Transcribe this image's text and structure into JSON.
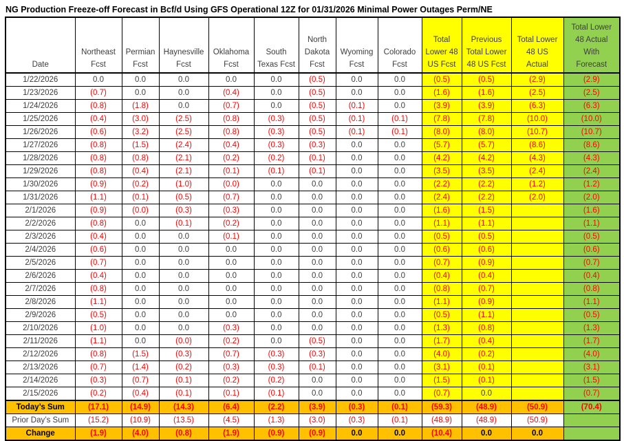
{
  "title": "NG Production Freeze-off Forecast in Bcf/d Using GFS Operational 12Z for 01/31/2026 Minimal Power Outages Perm/NE",
  "colors": {
    "yellow": "#FFFF00",
    "green": "#92D050",
    "orange": "#FFC000",
    "red": "#FF0000"
  },
  "table": {
    "date_header": "Date",
    "columns": [
      {
        "label": "Northeast\nFcst",
        "bg": "white"
      },
      {
        "label": "Permian\nFcst",
        "bg": "white"
      },
      {
        "label": "Haynesville\nFcst",
        "bg": "white"
      },
      {
        "label": "Oklahoma\nFcst",
        "bg": "white"
      },
      {
        "label": "South\nTexas Fcst",
        "bg": "white"
      },
      {
        "label": "North\nDakota\nFcst",
        "bg": "white"
      },
      {
        "label": "Wyoming\nFcst",
        "bg": "white"
      },
      {
        "label": "Colorado\nFcst",
        "bg": "white"
      },
      {
        "label": "Total\nLower 48\nUS Fcst",
        "bg": "yellow"
      },
      {
        "label": "Previous\nTotal Lower\n48 US Fcst",
        "bg": "yellow"
      },
      {
        "label": "Total Lower\n48 US\nActual",
        "bg": "yellow"
      },
      {
        "label": "Total Lower\n48 Actual\nWith\nForecast",
        "bg": "green"
      }
    ],
    "rows": [
      {
        "date": "1/22/2026",
        "values": [
          "0.0",
          "0.0",
          "0.0",
          "0.0",
          "0.0",
          "(0.5)",
          "0.0",
          "0.0",
          "(0.5)",
          "(0.5)",
          "(2.9)",
          "(2.9)"
        ]
      },
      {
        "date": "1/23/2026",
        "values": [
          "(0.7)",
          "0.0",
          "0.0",
          "(0.4)",
          "0.0",
          "(0.5)",
          "0.0",
          "0.0",
          "(1.6)",
          "(1.6)",
          "(2.5)",
          "(2.5)"
        ]
      },
      {
        "date": "1/24/2026",
        "values": [
          "(0.8)",
          "(1.8)",
          "0.0",
          "(0.7)",
          "0.0",
          "(0.5)",
          "(0.1)",
          "0.0",
          "(3.9)",
          "(3.9)",
          "(6.3)",
          "(6.3)"
        ]
      },
      {
        "date": "1/25/2026",
        "values": [
          "(0.4)",
          "(3.0)",
          "(2.5)",
          "(0.8)",
          "(0.3)",
          "(0.5)",
          "(0.1)",
          "(0.1)",
          "(7.8)",
          "(7.8)",
          "(10.0)",
          "(10.0)"
        ]
      },
      {
        "date": "1/26/2026",
        "values": [
          "(0.6)",
          "(3.2)",
          "(2.5)",
          "(0.8)",
          "(0.3)",
          "(0.5)",
          "(0.1)",
          "(0.1)",
          "(8.0)",
          "(8.0)",
          "(10.7)",
          "(10.7)"
        ]
      },
      {
        "date": "1/27/2026",
        "values": [
          "(0.8)",
          "(1.5)",
          "(2.4)",
          "(0.4)",
          "(0.3)",
          "(0.3)",
          "0.0",
          "0.0",
          "(5.7)",
          "(5.7)",
          "(8.6)",
          "(8.6)"
        ]
      },
      {
        "date": "1/28/2026",
        "values": [
          "(0.8)",
          "(0.8)",
          "(2.1)",
          "(0.2)",
          "(0.2)",
          "(0.1)",
          "0.0",
          "0.0",
          "(4.2)",
          "(4.2)",
          "(4.3)",
          "(4.3)"
        ]
      },
      {
        "date": "1/29/2026",
        "values": [
          "(0.8)",
          "(0.4)",
          "(2.1)",
          "(0.1)",
          "(0.1)",
          "(0.1)",
          "0.0",
          "0.0",
          "(3.5)",
          "(3.5)",
          "(2.4)",
          "(2.4)"
        ]
      },
      {
        "date": "1/30/2026",
        "values": [
          "(0.9)",
          "(0.2)",
          "(1.0)",
          "(0.0)",
          "0.0",
          "0.0",
          "0.0",
          "0.0",
          "(2.2)",
          "(2.2)",
          "(1.2)",
          "(1.2)"
        ]
      },
      {
        "date": "1/31/2026",
        "values": [
          "(1.1)",
          "(0.1)",
          "(0.5)",
          "(0.7)",
          "0.0",
          "0.0",
          "0.0",
          "0.0",
          "(2.4)",
          "(2.2)",
          "(2.0)",
          "(2.0)"
        ]
      },
      {
        "date": "2/1/2026",
        "values": [
          "(0.9)",
          "(0.0)",
          "(0.3)",
          "(0.3)",
          "0.0",
          "0.0",
          "0.0",
          "0.0",
          "(1.6)",
          "(1.5)",
          "",
          "(1.6)"
        ]
      },
      {
        "date": "2/2/2026",
        "values": [
          "(0.8)",
          "0.0",
          "(0.1)",
          "(0.2)",
          "0.0",
          "0.0",
          "0.0",
          "0.0",
          "(1.1)",
          "(1.1)",
          "",
          "(1.1)"
        ]
      },
      {
        "date": "2/3/2026",
        "values": [
          "(0.4)",
          "0.0",
          "0.0",
          "(0.1)",
          "0.0",
          "0.0",
          "0.0",
          "0.0",
          "(0.5)",
          "(0.5)",
          "",
          "(0.5)"
        ]
      },
      {
        "date": "2/4/2026",
        "values": [
          "(0.6)",
          "0.0",
          "0.0",
          "0.0",
          "0.0",
          "0.0",
          "0.0",
          "0.0",
          "(0.6)",
          "(0.6)",
          "",
          "(0.6)"
        ]
      },
      {
        "date": "2/5/2026",
        "values": [
          "(0.7)",
          "0.0",
          "0.0",
          "0.0",
          "0.0",
          "0.0",
          "0.0",
          "0.0",
          "(0.7)",
          "(0.9)",
          "",
          "(0.7)"
        ]
      },
      {
        "date": "2/6/2026",
        "values": [
          "(0.4)",
          "0.0",
          "0.0",
          "0.0",
          "0.0",
          "0.0",
          "0.0",
          "0.0",
          "(0.4)",
          "(0.4)",
          "",
          "(0.4)"
        ]
      },
      {
        "date": "2/7/2026",
        "values": [
          "(0.8)",
          "0.0",
          "0.0",
          "0.0",
          "0.0",
          "0.0",
          "0.0",
          "0.0",
          "(0.8)",
          "(0.7)",
          "",
          "(0.8)"
        ]
      },
      {
        "date": "2/8/2026",
        "values": [
          "(1.1)",
          "0.0",
          "0.0",
          "0.0",
          "0.0",
          "0.0",
          "0.0",
          "0.0",
          "(1.1)",
          "(0.9)",
          "",
          "(1.1)"
        ]
      },
      {
        "date": "2/9/2026",
        "values": [
          "(0.5)",
          "0.0",
          "0.0",
          "0.0",
          "0.0",
          "0.0",
          "0.0",
          "0.0",
          "(0.5)",
          "(1.1)",
          "",
          "(0.5)"
        ]
      },
      {
        "date": "2/10/2026",
        "values": [
          "(1.0)",
          "0.0",
          "0.0",
          "(0.3)",
          "0.0",
          "0.0",
          "0.0",
          "0.0",
          "(1.3)",
          "(0.8)",
          "",
          "(1.3)"
        ]
      },
      {
        "date": "2/11/2026",
        "values": [
          "(1.1)",
          "0.0",
          "(0.0)",
          "(0.2)",
          "0.0",
          "(0.5)",
          "0.0",
          "0.0",
          "(1.7)",
          "(0.4)",
          "",
          "(1.7)"
        ]
      },
      {
        "date": "2/12/2026",
        "values": [
          "(0.8)",
          "(1.5)",
          "(0.3)",
          "(0.7)",
          "(0.3)",
          "(0.3)",
          "0.0",
          "0.0",
          "(4.0)",
          "(0.2)",
          "",
          "(4.0)"
        ]
      },
      {
        "date": "2/13/2026",
        "values": [
          "(0.7)",
          "(1.4)",
          "(0.2)",
          "(0.3)",
          "(0.3)",
          "(0.1)",
          "0.0",
          "0.0",
          "(3.1)",
          "(0.1)",
          "",
          "(3.1)"
        ]
      },
      {
        "date": "2/14/2026",
        "values": [
          "(0.3)",
          "(0.7)",
          "(0.1)",
          "(0.2)",
          "(0.2)",
          "0.0",
          "0.0",
          "0.0",
          "(1.5)",
          "(0.1)",
          "",
          "(1.5)"
        ]
      },
      {
        "date": "2/15/2026",
        "values": [
          "(0.2)",
          "(0.4)",
          "(0.1)",
          "(0.1)",
          "(0.1)",
          "0.0",
          "0.0",
          "0.0",
          "(0.7)",
          "0.0",
          "",
          "(0.7)"
        ]
      }
    ],
    "summary_rows": [
      {
        "label": "Today’s Sum",
        "bg": "orange",
        "bold": true,
        "values": [
          "(17.1)",
          "(14.9)",
          "(14.3)",
          "(6.4)",
          "(2.2)",
          "(3.9)",
          "(0.3)",
          "(0.1)",
          "(59.3)",
          "(48.9)",
          "(50.9)",
          "(70.4)"
        ]
      },
      {
        "label": "Prior Day’s Sum",
        "bg": "white",
        "bold": false,
        "values": [
          "(15.2)",
          "(10.9)",
          "(13.5)",
          "(4.5)",
          "(1.3)",
          "(3.0)",
          "(0.3)",
          "(0.1)",
          "(48.9)",
          "(48.9)",
          "(50.9)",
          ""
        ]
      },
      {
        "label": "Change",
        "bg": "orange",
        "bold": true,
        "values": [
          "(1.9)",
          "(4.0)",
          "(0.8)",
          "(1.9)",
          "(0.9)",
          "(0.9)",
          "0.0",
          "0.0",
          "(10.4)",
          "0.0",
          "0.0",
          ""
        ]
      }
    ]
  }
}
